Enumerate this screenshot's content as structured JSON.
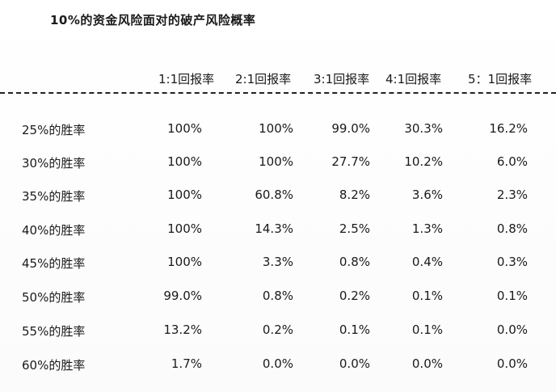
{
  "table": {
    "title": "10%的资金风险面对的破产风险概率",
    "columns": [
      "1:1回报率",
      "2:1回报率",
      "3:1回报率",
      "4:1回报率",
      "5：1回报率"
    ],
    "rows": [
      {
        "label": "25%的胜率",
        "values": [
          "100%",
          "100%",
          "99.0%",
          "30.3%",
          "16.2%"
        ]
      },
      {
        "label": "30%的胜率",
        "values": [
          "100%",
          "100%",
          "27.7%",
          "10.2%",
          "6.0%"
        ]
      },
      {
        "label": "35%的胜率",
        "values": [
          "100%",
          "60.8%",
          "8.2%",
          "3.6%",
          "2.3%"
        ]
      },
      {
        "label": "40%的胜率",
        "values": [
          "100%",
          "14.3%",
          "2.5%",
          "1.3%",
          "0.8%"
        ]
      },
      {
        "label": "45%的胜率",
        "values": [
          "100%",
          "3.3%",
          "0.8%",
          "0.4%",
          "0.3%"
        ]
      },
      {
        "label": "50%的胜率",
        "values": [
          "99.0%",
          "0.8%",
          "0.2%",
          "0.1%",
          "0.1%"
        ]
      },
      {
        "label": "55%的胜率",
        "values": [
          "13.2%",
          "0.2%",
          "0.1%",
          "0.1%",
          "0.0%"
        ]
      },
      {
        "label": "60%的胜率",
        "values": [
          "1.7%",
          "0.0%",
          "0.0%",
          "0.0%",
          "0.0%"
        ]
      }
    ]
  }
}
